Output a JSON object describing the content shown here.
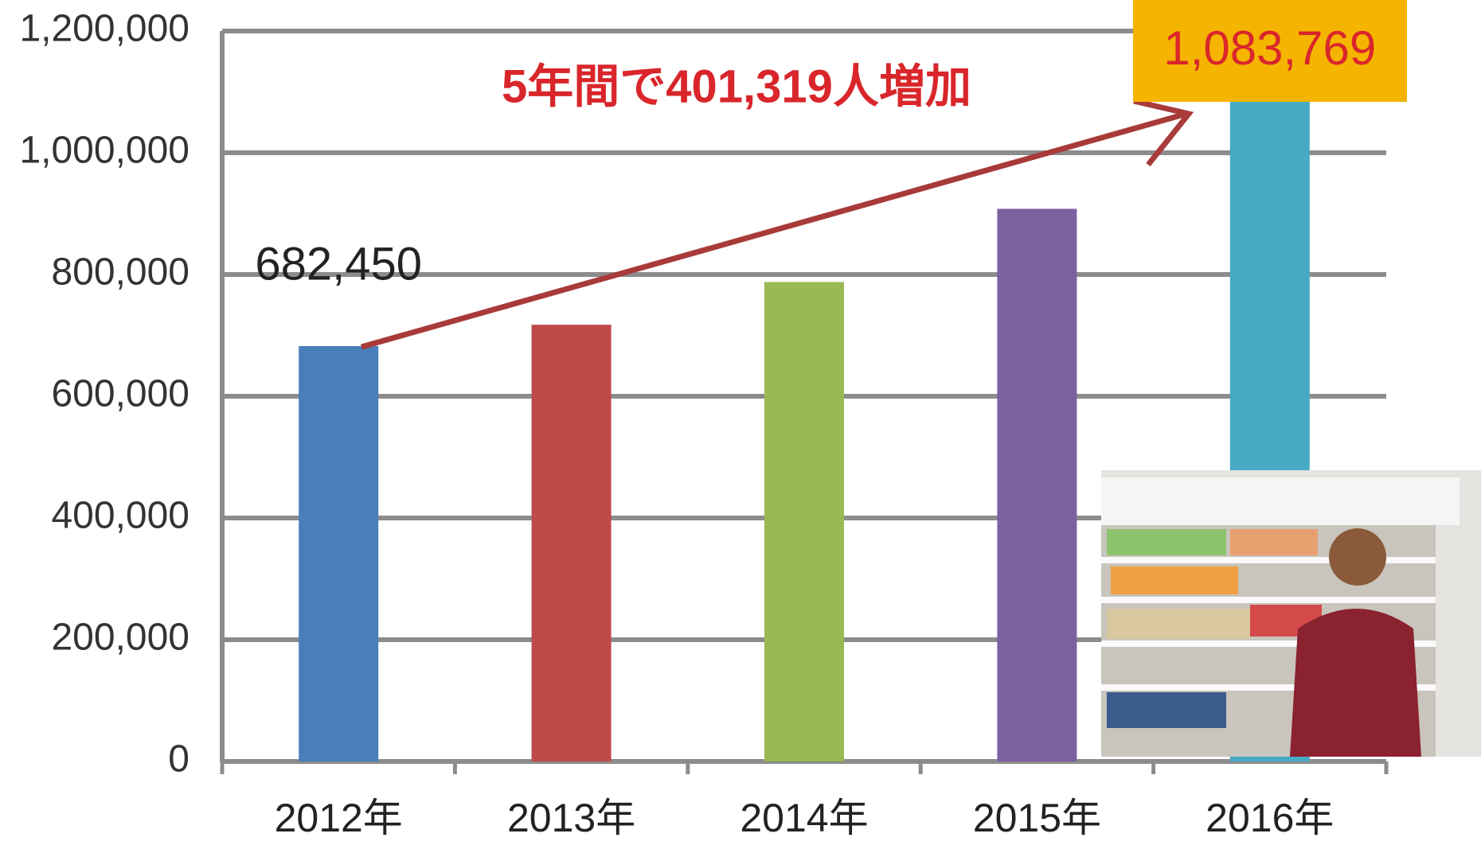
{
  "chart_data": {
    "type": "bar",
    "categories": [
      "2012年",
      "2013年",
      "2014年",
      "2015年",
      "2016年"
    ],
    "values": [
      682450,
      717504,
      787627,
      907896,
      1083769
    ],
    "value_labels": [
      "682,450",
      null,
      null,
      null,
      "1,083,769"
    ],
    "colors": [
      "#4a7ebb",
      "#be4b48",
      "#98b954",
      "#7d60a0",
      "#46aac5"
    ],
    "ylim": [
      0,
      1200000
    ],
    "yticks": [
      0,
      {
        "value": 200000,
        "label": "200,000"
      },
      {
        "value": 400000,
        "label": "400,000"
      },
      {
        "value": 600000,
        "label": "600,000"
      },
      {
        "value": 800000,
        "label": "800,000"
      },
      {
        "value": 1000000,
        "label": "1,000,000"
      },
      {
        "value": 1200000,
        "label": "1,200,000"
      }
    ],
    "grid": true,
    "annotation": "5年間で401,319人増加"
  }
}
